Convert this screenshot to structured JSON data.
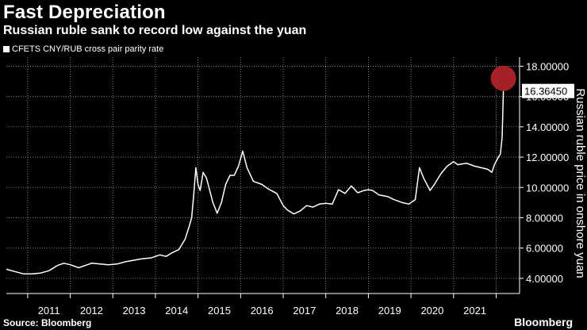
{
  "header": {
    "title": "Fast Depreciation",
    "subtitle": "Russian ruble sank to record low against the yuan"
  },
  "footer": {
    "source": "Source: Bloomberg",
    "brand": "Bloomberg"
  },
  "colors": {
    "background": "#000000",
    "line": "#ffffff",
    "grid": "#9a9a9a",
    "highlight": "#c1272d"
  },
  "chart_data": {
    "type": "line",
    "title": "Fast Depreciation",
    "subtitle": "Russian ruble sank to record low against the yuan",
    "series": [
      {
        "name": "CFETS CNY/RUB cross pair parity rate",
        "points": [
          [
            2010.5,
            4.6
          ],
          [
            2010.7,
            4.45
          ],
          [
            2010.9,
            4.3
          ],
          [
            2011.1,
            4.3
          ],
          [
            2011.3,
            4.35
          ],
          [
            2011.5,
            4.5
          ],
          [
            2011.7,
            4.85
          ],
          [
            2011.85,
            5.0
          ],
          [
            2012.0,
            4.9
          ],
          [
            2012.2,
            4.7
          ],
          [
            2012.35,
            4.85
          ],
          [
            2012.5,
            5.0
          ],
          [
            2012.7,
            4.95
          ],
          [
            2012.9,
            4.9
          ],
          [
            2013.1,
            4.95
          ],
          [
            2013.3,
            5.1
          ],
          [
            2013.5,
            5.2
          ],
          [
            2013.7,
            5.3
          ],
          [
            2013.9,
            5.35
          ],
          [
            2014.1,
            5.55
          ],
          [
            2014.25,
            5.45
          ],
          [
            2014.4,
            5.7
          ],
          [
            2014.55,
            5.9
          ],
          [
            2014.7,
            6.6
          ],
          [
            2014.8,
            7.5
          ],
          [
            2014.85,
            8.0
          ],
          [
            2014.9,
            9.5
          ],
          [
            2014.95,
            11.3
          ],
          [
            2015.0,
            10.2
          ],
          [
            2015.05,
            9.8
          ],
          [
            2015.12,
            11.0
          ],
          [
            2015.2,
            10.6
          ],
          [
            2015.35,
            9.0
          ],
          [
            2015.45,
            8.3
          ],
          [
            2015.55,
            9.0
          ],
          [
            2015.65,
            10.2
          ],
          [
            2015.75,
            10.8
          ],
          [
            2015.85,
            10.8
          ],
          [
            2015.95,
            11.4
          ],
          [
            2016.05,
            12.4
          ],
          [
            2016.15,
            11.3
          ],
          [
            2016.3,
            10.4
          ],
          [
            2016.5,
            10.2
          ],
          [
            2016.65,
            9.9
          ],
          [
            2016.85,
            9.6
          ],
          [
            2017.0,
            8.8
          ],
          [
            2017.1,
            8.5
          ],
          [
            2017.25,
            8.25
          ],
          [
            2017.4,
            8.45
          ],
          [
            2017.55,
            8.8
          ],
          [
            2017.7,
            8.7
          ],
          [
            2017.85,
            8.9
          ],
          [
            2018.0,
            8.95
          ],
          [
            2018.15,
            8.9
          ],
          [
            2018.3,
            9.85
          ],
          [
            2018.45,
            9.6
          ],
          [
            2018.6,
            10.1
          ],
          [
            2018.75,
            9.65
          ],
          [
            2018.9,
            9.8
          ],
          [
            2019.0,
            9.85
          ],
          [
            2019.1,
            9.8
          ],
          [
            2019.25,
            9.5
          ],
          [
            2019.45,
            9.4
          ],
          [
            2019.6,
            9.2
          ],
          [
            2019.8,
            9.0
          ],
          [
            2019.95,
            8.9
          ],
          [
            2020.1,
            9.2
          ],
          [
            2020.2,
            11.3
          ],
          [
            2020.3,
            10.6
          ],
          [
            2020.45,
            9.8
          ],
          [
            2020.55,
            10.2
          ],
          [
            2020.7,
            10.9
          ],
          [
            2020.85,
            11.4
          ],
          [
            2021.0,
            11.7
          ],
          [
            2021.1,
            11.5
          ],
          [
            2021.3,
            11.6
          ],
          [
            2021.5,
            11.4
          ],
          [
            2021.65,
            11.3
          ],
          [
            2021.8,
            11.2
          ],
          [
            2021.9,
            11.0
          ],
          [
            2021.96,
            11.5
          ],
          [
            2022.05,
            12.0
          ],
          [
            2022.1,
            12.2
          ],
          [
            2022.14,
            13.3
          ],
          [
            2022.17,
            16.36
          ]
        ]
      }
    ],
    "x_ticks": [
      "2011",
      "2012",
      "2013",
      "2014",
      "2015",
      "2016",
      "2017",
      "2018",
      "2019",
      "2020",
      "2021"
    ],
    "x_tick_values": [
      2011.5,
      2012.5,
      2013.5,
      2014.5,
      2015.5,
      2016.5,
      2017.5,
      2018.5,
      2019.5,
      2020.5,
      2021.5
    ],
    "x_year_boundaries": [
      2011,
      2012,
      2013,
      2014,
      2015,
      2016,
      2017,
      2018,
      2019,
      2020,
      2021,
      2022
    ],
    "xlim": [
      2010.5,
      2022.55
    ],
    "y_ticks": [
      "4.00000",
      "6.00000",
      "8.00000",
      "10.00000",
      "12.00000",
      "14.00000",
      "16.00000",
      "18.00000"
    ],
    "y_tick_values": [
      4,
      6,
      8,
      10,
      12,
      14,
      16,
      18
    ],
    "ylim": [
      3.0,
      18.6
    ],
    "ylabel": "Russian ruble price in onshore yuan",
    "xlabel": "",
    "grid": true,
    "annotations": {
      "last_value_label": "16.36450",
      "last_value": 16.3645,
      "highlight_value": 17.2,
      "highlight_x": 2022.17
    }
  }
}
